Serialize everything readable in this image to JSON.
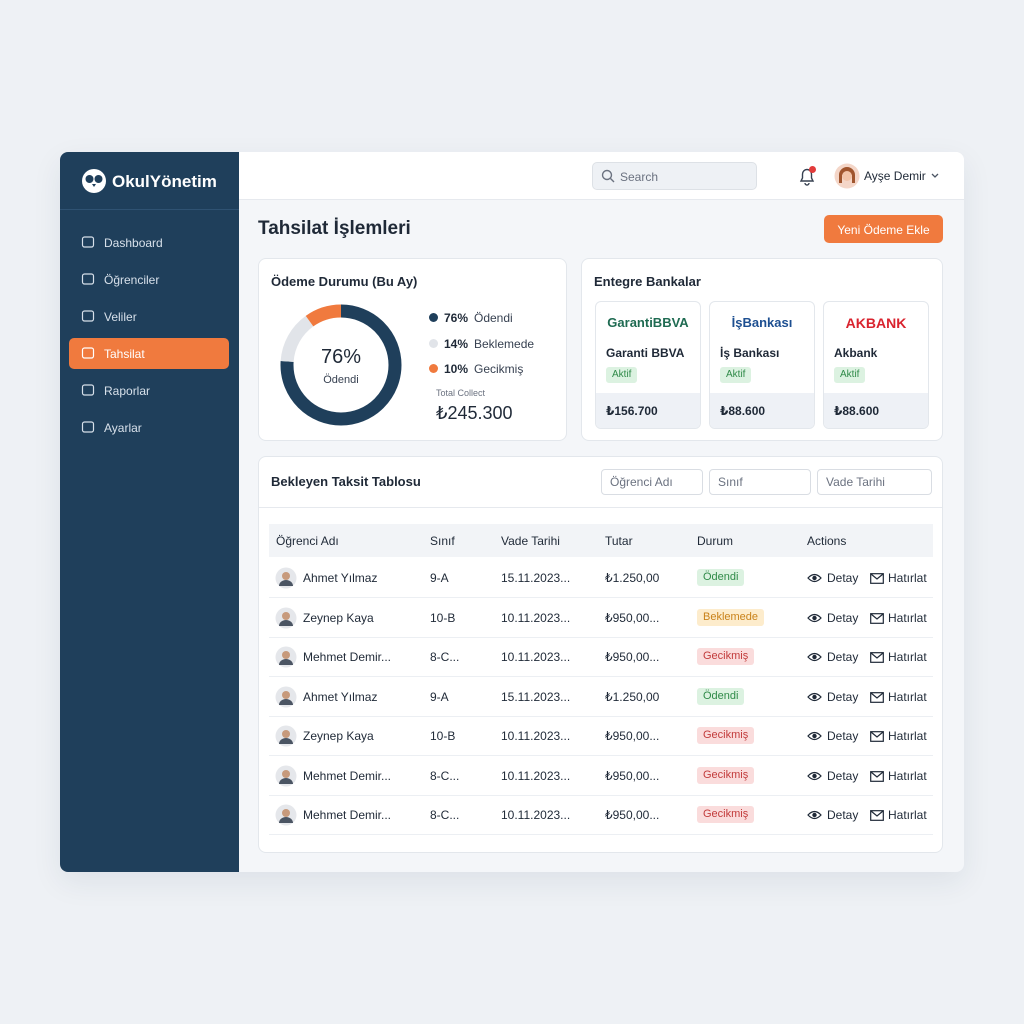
{
  "brand": "OkulYönetim",
  "nav": [
    {
      "label": "Dashboard",
      "active": false
    },
    {
      "label": "Öğrenciler",
      "active": false
    },
    {
      "label": "Veliler",
      "active": false
    },
    {
      "label": "Tahsilat",
      "active": true
    },
    {
      "label": "Raporlar",
      "active": false
    },
    {
      "label": "Ayarlar",
      "active": false
    }
  ],
  "search_placeholder": "Search",
  "user_name": "Ayşe Demir",
  "page_title": "Tahsilat İşlemleri",
  "primary_button": "Yeni Ödeme Ekle",
  "payment_status": {
    "title": "Ödeme Durumu (Bu Ay)",
    "type": "donut",
    "categories": [
      "Ödendi",
      "Beklemede",
      "Gecikmiş"
    ],
    "values": [
      76,
      14,
      10
    ],
    "value_labels": [
      "76%",
      "14%",
      "10%"
    ],
    "colors": [
      "#1f3f5b",
      "#e1e4e9",
      "#f07a3e"
    ],
    "total_label": "Total Collect",
    "total": "₺245.300"
  },
  "banks": {
    "title": "Entegre Bankalar",
    "items": [
      {
        "logo": "GarantiBBVA",
        "logo_color": "#1f6b52",
        "name": "Garanti BBVA",
        "status": "Aktif",
        "amount": "₺156.700"
      },
      {
        "logo": "İşBankası",
        "logo_color": "#1d4f91",
        "name": "İş Bankası",
        "status": "Aktif",
        "amount": "₺88.600"
      },
      {
        "logo": "AKBANK",
        "logo_color": "#d9232e",
        "name": "Akbank",
        "status": "Aktif",
        "amount": "₺88.600"
      }
    ]
  },
  "table": {
    "title": "Bekleyen Taksit Tablosu",
    "filters": [
      "Öğrenci Adı",
      "Sınıf",
      "Vade Tarihi"
    ],
    "headers": [
      "Öğrenci Adı",
      "Sınıf",
      "Vade Tarihi",
      "Tutar",
      "Durum",
      "Actions"
    ],
    "actions": [
      "Detay",
      "Hatırlat"
    ],
    "rows": [
      {
        "name": "Ahmet Yılmaz",
        "class": "9-A",
        "due": "15.11.2023...",
        "amount": "₺1.250,00",
        "status": "Ödendi",
        "tone": "green"
      },
      {
        "name": "Zeynep Kaya",
        "class": "10-B",
        "due": "10.11.2023...",
        "amount": "₺950,00...",
        "status": "Beklemede",
        "tone": "amber"
      },
      {
        "name": "Mehmet Demir...",
        "class": "8-C...",
        "due": "10.11.2023...",
        "amount": "₺950,00...",
        "status": "Gecikmiş",
        "tone": "red"
      },
      {
        "name": "Ahmet Yılmaz",
        "class": "9-A",
        "due": "15.11.2023...",
        "amount": "₺1.250,00",
        "status": "Ödendi",
        "tone": "green"
      },
      {
        "name": "Zeynep Kaya",
        "class": "10-B",
        "due": "10.11.2023...",
        "amount": "₺950,00...",
        "status": "Gecikmiş",
        "tone": "red"
      },
      {
        "name": "Mehmet Demir...",
        "class": "8-C...",
        "due": "10.11.2023...",
        "amount": "₺950,00...",
        "status": "Gecikmiş",
        "tone": "red"
      },
      {
        "name": "Mehmet Demir...",
        "class": "8-C...",
        "due": "10.11.2023...",
        "amount": "₺950,00...",
        "status": "Gecikmiş",
        "tone": "red"
      }
    ]
  }
}
